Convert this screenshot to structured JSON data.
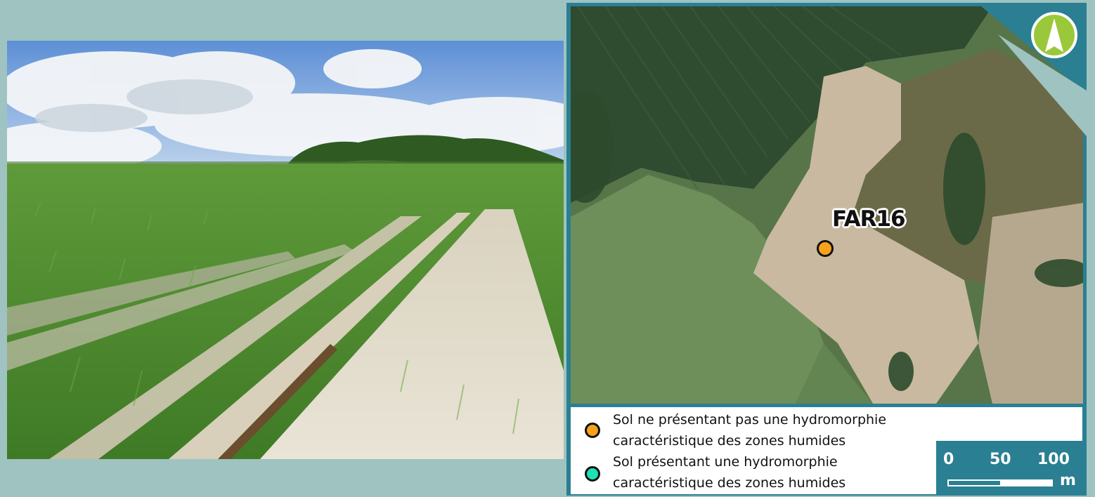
{
  "map": {
    "point": {
      "label": "FAR16",
      "category": "non_wetland",
      "color": "#f7a21b"
    }
  },
  "legend": {
    "items": [
      {
        "line1": "Sol ne présentant pas une hydromorphie",
        "line2": "caractéristique des zones humides",
        "color": "#f7a21b"
      },
      {
        "line1": "Sol présentant une hydromorphie",
        "line2": "caractéristique des zones humides",
        "color": "#1fe0b4"
      }
    ]
  },
  "scale_bar": {
    "ticks": [
      "0",
      "50",
      "100"
    ],
    "unit": "m"
  },
  "icons": {
    "north_arrow": "north-arrow-icon"
  }
}
